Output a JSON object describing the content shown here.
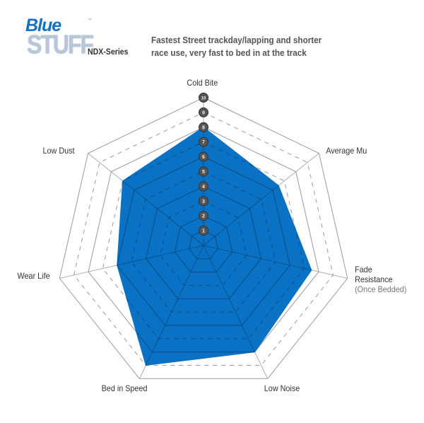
{
  "header": {
    "logo_line1": "Blue",
    "logo_line2": "STUFF",
    "logo_tm": "™",
    "series": "NDX-Series",
    "description_line1": "Fastest Street trackday/lapping and shorter",
    "description_line2": "race use, very fast to bed in at the track"
  },
  "chart_data": {
    "type": "radar",
    "axes": [
      "Cold Bite",
      "Average Mu",
      "Fade Resistance",
      "Low Noise",
      "Bed in Speed",
      "Wear Life",
      "Low Dust"
    ],
    "axis_sublabels": {
      "Fade Resistance": "(Once Bedded)"
    },
    "values": [
      8,
      6.5,
      7.5,
      8,
      9,
      6,
      7
    ],
    "range": [
      0,
      10
    ],
    "scale_ticks": [
      "1",
      "2",
      "3",
      "4",
      "5",
      "6",
      "7",
      "8",
      "9",
      "10"
    ],
    "fill_color": "#0a72c4",
    "grid": true
  }
}
